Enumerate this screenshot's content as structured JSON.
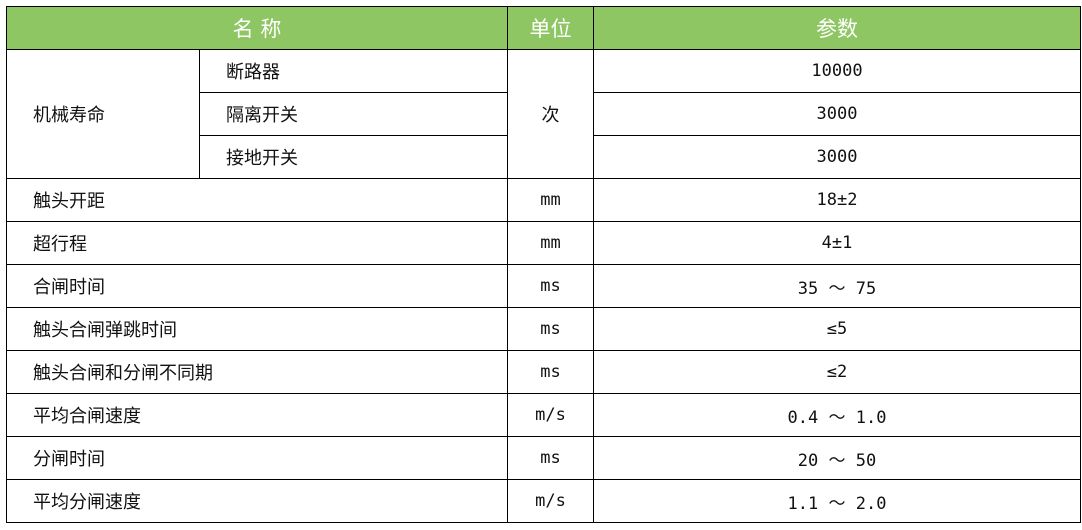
{
  "header": {
    "name": "名 称",
    "unit": "单位",
    "param": "参数"
  },
  "life": {
    "label": "机械寿命",
    "unit": "次",
    "items": [
      {
        "name": "断路器",
        "value": "10000"
      },
      {
        "name": "隔离开关",
        "value": "3000"
      },
      {
        "name": "接地开关",
        "value": "3000"
      }
    ]
  },
  "rows": [
    {
      "name": "触头开距",
      "unit": "mm",
      "value": "18±2"
    },
    {
      "name": "超行程",
      "unit": "mm",
      "value": "4±1"
    },
    {
      "name": "合闸时间",
      "unit": "ms",
      "value": "35 ～ 75"
    },
    {
      "name": "触头合闸弹跳时间",
      "unit": "ms",
      "value": "≤5"
    },
    {
      "name": "触头合闸和分闸不同期",
      "unit": "ms",
      "value": "≤2"
    },
    {
      "name": "平均合闸速度",
      "unit": "m/s",
      "value": "0.4 ～ 1.0"
    },
    {
      "name": "分闸时间",
      "unit": "ms",
      "value": "20 ～ 50"
    },
    {
      "name": "平均分闸速度",
      "unit": "m/s",
      "value": "1.1 ～ 2.0"
    }
  ],
  "colors": {
    "header_bg": "#8dc663",
    "header_text": "#ffffff"
  }
}
